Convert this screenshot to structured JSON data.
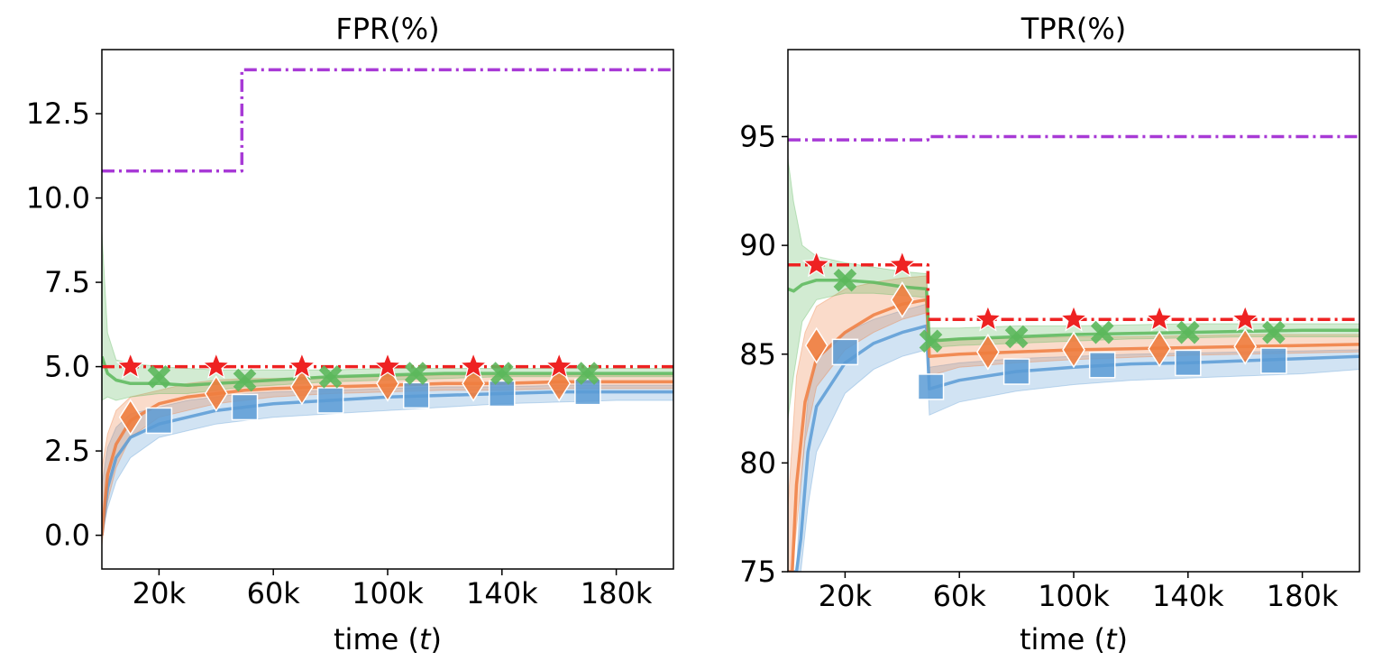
{
  "colors": {
    "blue": "#5b9bd5",
    "orange": "#ee7d3f",
    "green": "#5cb85c",
    "red": "#ee2222",
    "purple": "#a83ad6"
  },
  "chart_data": [
    {
      "type": "line",
      "title": "FPR(%)",
      "xlabel_prefix": "time (",
      "xlabel_var": "t",
      "xlabel_suffix": ")",
      "ylabel": "",
      "xlim": [
        0,
        200000
      ],
      "ylim": [
        -1.0,
        14.4
      ],
      "xticks": [
        20000,
        60000,
        100000,
        140000,
        180000
      ],
      "xtick_labels": [
        "20k",
        "60k",
        "100k",
        "140k",
        "180k"
      ],
      "yticks": [
        0.0,
        2.5,
        5.0,
        7.5,
        10.0,
        12.5
      ],
      "ytick_labels": [
        "0.0",
        "2.5",
        "5.0",
        "7.5",
        "10.0",
        "12.5"
      ],
      "grid": false,
      "series": [
        {
          "name": "purple-dashdot",
          "color_key": "purple",
          "style": "dashdot",
          "marker": "none",
          "x": [
            0,
            49000,
            49000,
            200000
          ],
          "y": [
            10.8,
            10.8,
            13.8,
            13.8
          ]
        },
        {
          "name": "red-star",
          "color_key": "red",
          "style": "dashdot",
          "marker": "star",
          "x": [
            0,
            200000
          ],
          "y": [
            5.0,
            5.0
          ],
          "marker_x": [
            10000,
            40000,
            70000,
            100000,
            130000,
            160000
          ],
          "marker_y": [
            5.0,
            5.0,
            5.0,
            5.0,
            5.0,
            5.0
          ]
        },
        {
          "name": "green-x",
          "color_key": "green",
          "style": "solid",
          "marker": "x",
          "x": [
            0,
            2000,
            5000,
            10000,
            20000,
            30000,
            40000,
            50000,
            60000,
            80000,
            100000,
            120000,
            140000,
            160000,
            180000,
            200000
          ],
          "y": [
            5.3,
            4.8,
            4.6,
            4.5,
            4.5,
            4.45,
            4.5,
            4.55,
            4.6,
            4.7,
            4.75,
            4.8,
            4.8,
            4.8,
            4.8,
            4.8
          ],
          "band_lo": [
            4.0,
            4.1,
            4.0,
            4.1,
            4.2,
            4.2,
            4.3,
            4.4,
            4.45,
            4.55,
            4.6,
            4.65,
            4.7,
            4.7,
            4.7,
            4.7
          ],
          "band_hi": [
            9.0,
            6.0,
            5.2,
            5.1,
            5.0,
            4.95,
            4.9,
            4.9,
            4.9,
            4.9,
            4.95,
            4.95,
            4.95,
            4.95,
            4.95,
            4.95
          ],
          "marker_x": [
            20000,
            50000,
            80000,
            110000,
            140000,
            170000
          ],
          "marker_y": [
            4.7,
            4.6,
            4.7,
            4.8,
            4.8,
            4.8
          ]
        },
        {
          "name": "orange-diamond",
          "color_key": "orange",
          "style": "solid",
          "marker": "diamond",
          "x": [
            0,
            2000,
            5000,
            10000,
            20000,
            30000,
            40000,
            50000,
            60000,
            80000,
            100000,
            120000,
            140000,
            160000,
            180000,
            200000
          ],
          "y": [
            0.0,
            1.8,
            2.7,
            3.4,
            3.9,
            4.1,
            4.2,
            4.3,
            4.35,
            4.4,
            4.45,
            4.5,
            4.5,
            4.55,
            4.55,
            4.55
          ],
          "band_lo": [
            -0.3,
            1.0,
            2.0,
            2.9,
            3.5,
            3.7,
            3.9,
            4.0,
            4.1,
            4.2,
            4.25,
            4.3,
            4.3,
            4.35,
            4.35,
            4.35
          ],
          "band_hi": [
            2.0,
            3.0,
            3.7,
            4.1,
            4.3,
            4.5,
            4.6,
            4.65,
            4.65,
            4.7,
            4.7,
            4.75,
            4.75,
            4.75,
            4.75,
            4.75
          ],
          "marker_x": [
            10000,
            40000,
            70000,
            100000,
            130000,
            160000
          ],
          "marker_y": [
            3.5,
            4.2,
            4.4,
            4.5,
            4.5,
            4.5
          ]
        },
        {
          "name": "blue-square",
          "color_key": "blue",
          "style": "solid",
          "marker": "square",
          "x": [
            0,
            2000,
            5000,
            10000,
            20000,
            30000,
            40000,
            50000,
            60000,
            80000,
            100000,
            120000,
            140000,
            160000,
            180000,
            200000
          ],
          "y": [
            0.0,
            1.4,
            2.3,
            2.9,
            3.3,
            3.5,
            3.7,
            3.8,
            3.9,
            4.0,
            4.1,
            4.15,
            4.2,
            4.25,
            4.25,
            4.25
          ],
          "band_lo": [
            0.0,
            0.8,
            1.6,
            2.3,
            2.9,
            3.1,
            3.3,
            3.4,
            3.5,
            3.6,
            3.7,
            3.8,
            3.9,
            3.95,
            4.0,
            4.0
          ],
          "band_hi": [
            1.5,
            2.6,
            3.2,
            3.6,
            3.8,
            4.0,
            4.1,
            4.2,
            4.25,
            4.3,
            4.35,
            4.4,
            4.4,
            4.45,
            4.45,
            4.45
          ],
          "marker_x": [
            20000,
            50000,
            80000,
            110000,
            140000,
            170000
          ],
          "marker_y": [
            3.4,
            3.8,
            4.0,
            4.15,
            4.2,
            4.25
          ]
        }
      ]
    },
    {
      "type": "line",
      "title": "TPR(%)",
      "xlabel_prefix": "time (",
      "xlabel_var": "t",
      "xlabel_suffix": ")",
      "ylabel": "",
      "xlim": [
        0,
        200000
      ],
      "ylim": [
        75,
        99
      ],
      "xticks": [
        20000,
        60000,
        100000,
        140000,
        180000
      ],
      "xtick_labels": [
        "20k",
        "60k",
        "100k",
        "140k",
        "180k"
      ],
      "yticks": [
        75,
        80,
        85,
        90,
        95
      ],
      "ytick_labels": [
        "75",
        "80",
        "85",
        "90",
        "95"
      ],
      "grid": false,
      "series": [
        {
          "name": "purple-dashdot",
          "color_key": "purple",
          "style": "dashdot",
          "marker": "none",
          "x": [
            0,
            49000,
            49000,
            200000
          ],
          "y": [
            94.85,
            94.85,
            95.0,
            95.0
          ]
        },
        {
          "name": "red-star",
          "color_key": "red",
          "style": "dashdot",
          "marker": "star",
          "x": [
            0,
            49000,
            49000,
            200000
          ],
          "y": [
            89.1,
            89.1,
            86.6,
            86.6
          ],
          "marker_x": [
            10000,
            40000,
            70000,
            100000,
            130000,
            160000
          ],
          "marker_y": [
            89.1,
            89.1,
            86.6,
            86.6,
            86.6,
            86.6
          ]
        },
        {
          "name": "green-x",
          "color_key": "green",
          "style": "solid",
          "marker": "x",
          "x": [
            0,
            2000,
            5000,
            10000,
            20000,
            30000,
            40000,
            48500,
            49500,
            60000,
            80000,
            100000,
            120000,
            140000,
            160000,
            180000,
            200000
          ],
          "y": [
            88.0,
            87.9,
            88.2,
            88.4,
            88.4,
            88.3,
            88.1,
            88.0,
            85.6,
            85.7,
            85.8,
            85.9,
            85.95,
            86.0,
            86.05,
            86.1,
            86.1
          ],
          "band_lo": [
            82.0,
            84.0,
            86.5,
            87.5,
            87.8,
            87.8,
            87.7,
            87.6,
            85.3,
            85.4,
            85.5,
            85.6,
            85.7,
            85.75,
            85.8,
            85.8,
            85.8
          ],
          "band_hi": [
            94.0,
            92.0,
            90.0,
            89.5,
            89.2,
            89.0,
            88.8,
            88.7,
            86.2,
            86.2,
            86.3,
            86.3,
            86.35,
            86.4,
            86.4,
            86.4,
            86.4
          ],
          "marker_x": [
            20000,
            50000,
            80000,
            110000,
            140000,
            170000
          ],
          "marker_y": [
            88.4,
            85.6,
            85.8,
            86.0,
            86.0,
            86.0
          ]
        },
        {
          "name": "orange-diamond",
          "color_key": "orange",
          "style": "solid",
          "marker": "diamond",
          "x": [
            0,
            1500,
            3000,
            6000,
            10000,
            20000,
            30000,
            40000,
            48500,
            49500,
            60000,
            80000,
            100000,
            120000,
            140000,
            160000,
            180000,
            200000
          ],
          "y": [
            75.0,
            75.0,
            79.0,
            82.8,
            84.8,
            86.0,
            86.8,
            87.3,
            87.5,
            84.9,
            85.0,
            85.1,
            85.2,
            85.25,
            85.3,
            85.35,
            85.4,
            85.45
          ],
          "band_lo": [
            75.0,
            75.0,
            77.0,
            81.0,
            83.5,
            85.2,
            86.0,
            86.6,
            86.9,
            84.0,
            84.4,
            84.6,
            84.75,
            84.85,
            84.95,
            85.0,
            85.05,
            85.1
          ],
          "band_hi": [
            78.0,
            81.0,
            84.0,
            86.0,
            87.2,
            88.0,
            88.3,
            88.5,
            88.6,
            85.7,
            85.7,
            85.75,
            85.8,
            85.8,
            85.85,
            85.9,
            85.9,
            85.9
          ],
          "marker_x": [
            10000,
            40000,
            70000,
            100000,
            130000,
            160000
          ],
          "marker_y": [
            85.4,
            87.5,
            85.1,
            85.2,
            85.25,
            85.35
          ]
        },
        {
          "name": "blue-square",
          "color_key": "blue",
          "style": "solid",
          "marker": "square",
          "x": [
            0,
            3000,
            4500,
            7000,
            10000,
            20000,
            30000,
            40000,
            48500,
            49500,
            60000,
            80000,
            100000,
            120000,
            140000,
            160000,
            180000,
            200000
          ],
          "y": [
            75.0,
            75.0,
            76.5,
            80.5,
            82.6,
            84.6,
            85.5,
            86.0,
            86.3,
            83.4,
            83.8,
            84.2,
            84.4,
            84.55,
            84.6,
            84.7,
            84.8,
            84.9
          ],
          "band_lo": [
            75.0,
            75.0,
            75.0,
            78.0,
            80.5,
            83.2,
            84.3,
            84.9,
            85.2,
            82.2,
            82.8,
            83.3,
            83.6,
            83.8,
            83.9,
            84.0,
            84.1,
            84.3
          ],
          "band_hi": [
            75.0,
            75.0,
            79.0,
            83.0,
            84.8,
            86.0,
            86.6,
            87.0,
            87.3,
            84.4,
            84.6,
            84.8,
            84.9,
            85.0,
            85.05,
            85.1,
            85.15,
            85.2
          ],
          "marker_x": [
            20000,
            50000,
            80000,
            110000,
            140000,
            170000
          ],
          "marker_y": [
            85.1,
            83.5,
            84.2,
            84.5,
            84.6,
            84.7
          ]
        }
      ]
    }
  ]
}
